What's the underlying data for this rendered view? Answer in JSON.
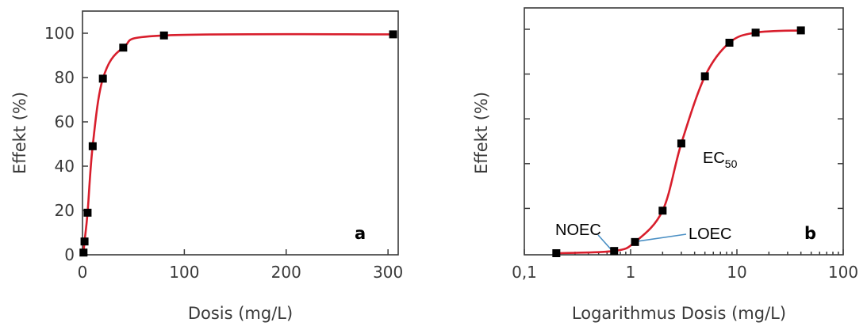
{
  "chart_data": [
    {
      "type": "scatter",
      "panel": "a",
      "xlabel": "Dosis (mg/L)",
      "ylabel": "Effekt (%)",
      "xlim": [
        0,
        310
      ],
      "ylim": [
        0,
        110
      ],
      "x_ticks": [
        0,
        100,
        200,
        300
      ],
      "x_tick_labels": [
        "0",
        "100",
        "200",
        "300"
      ],
      "y_ticks": [
        0,
        20,
        40,
        60,
        80,
        100
      ],
      "y_tick_labels": [
        "0",
        "20",
        "40",
        "60",
        "80",
        "100"
      ],
      "points": [
        {
          "x": 1,
          "y": 1
        },
        {
          "x": 2,
          "y": 6
        },
        {
          "x": 5,
          "y": 19
        },
        {
          "x": 10,
          "y": 49
        },
        {
          "x": 20,
          "y": 79.5
        },
        {
          "x": 40,
          "y": 93.5
        },
        {
          "x": 80,
          "y": 99
        },
        {
          "x": 305,
          "y": 99.5
        }
      ],
      "fit_curve": {
        "color": "#d81e2c"
      },
      "grid": false
    },
    {
      "type": "scatter",
      "panel": "b",
      "xlabel": "Logarithmus Dosis (mg/L)",
      "ylabel": "Effekt (%)",
      "x_scale": "log",
      "xlim": [
        0.1,
        100
      ],
      "ylim": [
        0,
        100
      ],
      "x_ticks": [
        0.1,
        1,
        10,
        100
      ],
      "x_tick_labels": [
        "0,1",
        "1",
        "10",
        "100"
      ],
      "points": [
        {
          "x": 0.2,
          "y": 0
        },
        {
          "x": 0.7,
          "y": 1
        },
        {
          "x": 1.1,
          "y": 5
        },
        {
          "x": 2,
          "y": 19
        },
        {
          "x": 3,
          "y": 49
        },
        {
          "x": 5,
          "y": 79
        },
        {
          "x": 8.5,
          "y": 94
        },
        {
          "x": 15,
          "y": 98.5
        },
        {
          "x": 40,
          "y": 99.5
        }
      ],
      "annotations": [
        {
          "text": "NOEC",
          "x": 0.7,
          "y": 1
        },
        {
          "text": "LOEC",
          "x": 1.1,
          "y": 5
        },
        {
          "text": "EC",
          "subscript": "50",
          "x": 3,
          "y": 49
        }
      ],
      "fit_curve": {
        "color": "#d81e2c"
      },
      "grid": false
    }
  ]
}
